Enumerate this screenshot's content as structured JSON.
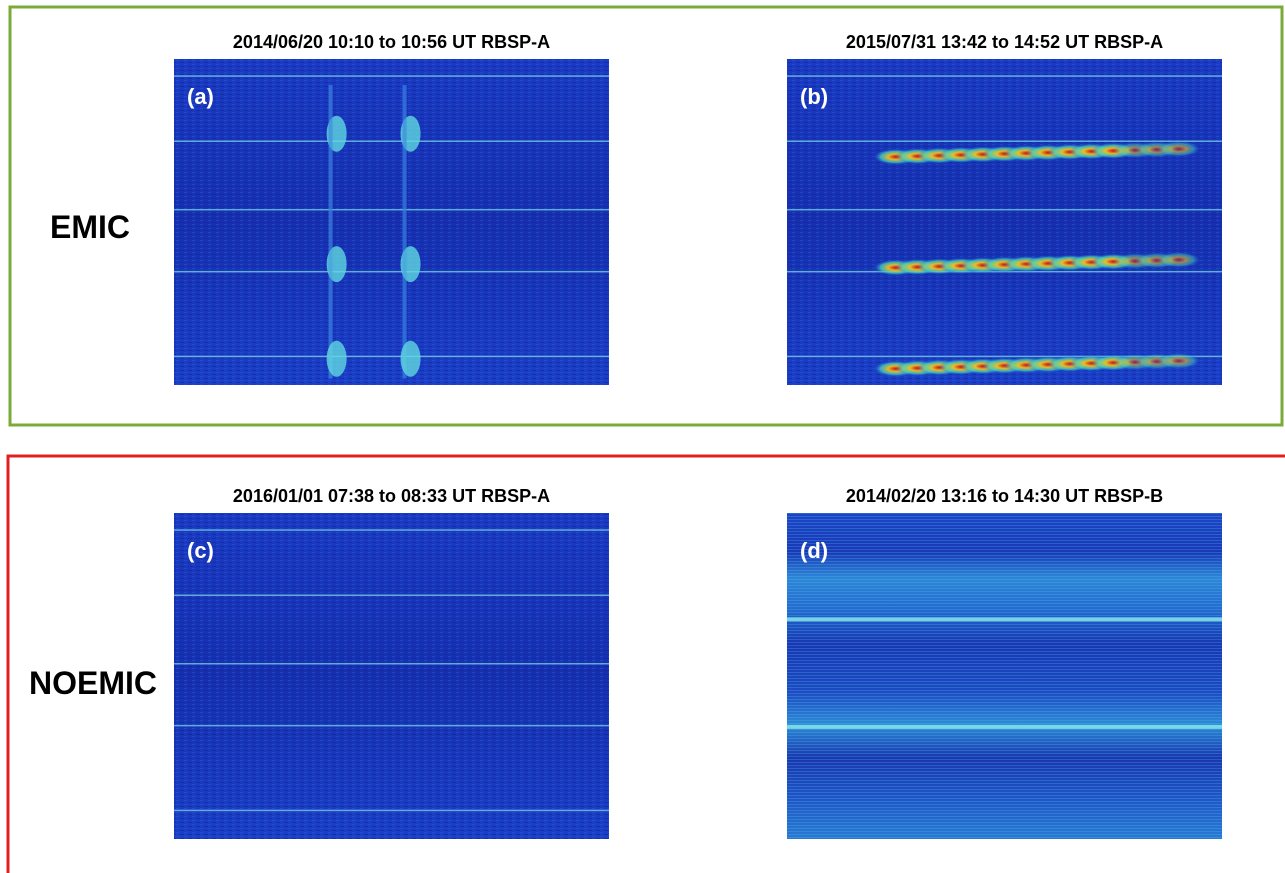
{
  "groups": [
    {
      "label": "EMIC",
      "panels": [
        {
          "title": "2014/06/20 10:10 to 10:56 UT RBSP-A",
          "tag": "(a)"
        },
        {
          "title": "2015/07/31 13:42 to 14:52 UT RBSP-A",
          "tag": "(b)"
        }
      ]
    },
    {
      "label": "NOEMIC",
      "panels": [
        {
          "title": "2016/01/01 07:38 to 08:33 UT RBSP-A",
          "tag": "(c)"
        },
        {
          "title": "2014/02/20 13:16 to 14:30 UT RBSP-B",
          "tag": "(d)"
        }
      ]
    }
  ]
}
